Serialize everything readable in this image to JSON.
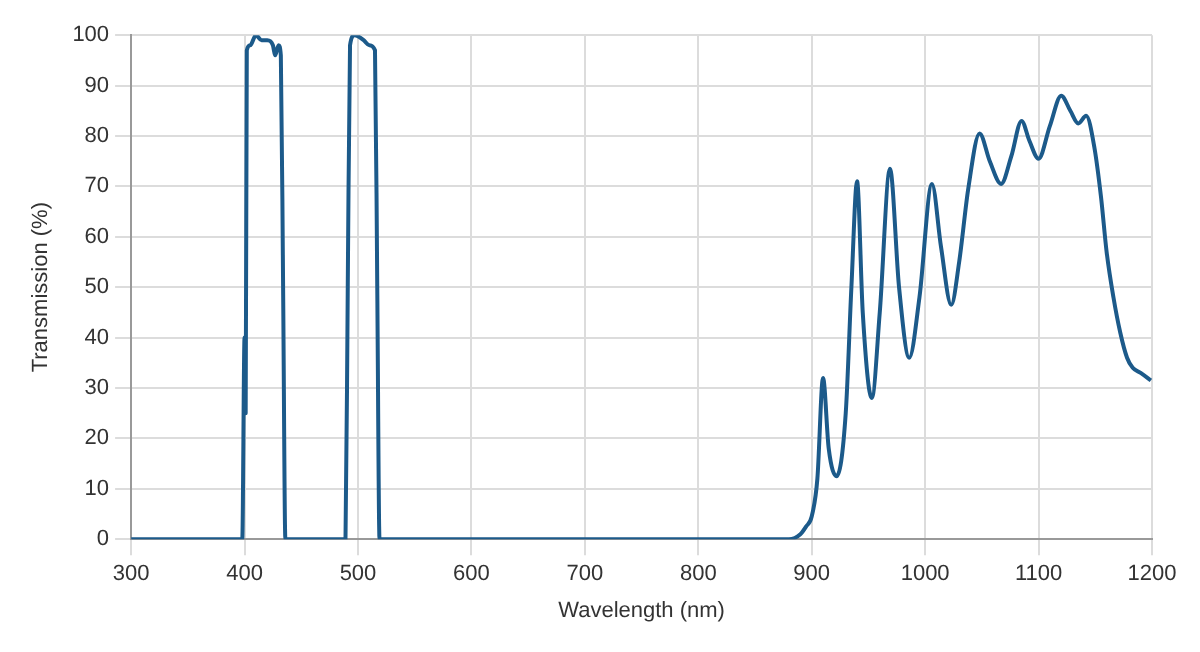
{
  "chart_data": {
    "type": "line",
    "xlabel": "Wavelength (nm)",
    "ylabel": "Transmission (%)",
    "xlim": [
      300,
      1200
    ],
    "xticks": [
      300,
      400,
      500,
      600,
      700,
      800,
      900,
      1000,
      1100,
      1200
    ],
    "ylim": [
      0,
      100
    ],
    "yticks": [
      0,
      10,
      20,
      30,
      40,
      50,
      60,
      70,
      80,
      90,
      100
    ],
    "grid": true,
    "legend": false,
    "marker": "none",
    "line_style": "solid",
    "series": [
      {
        "color": "#1c5a8a",
        "x": [
          300,
          398,
          400,
          401,
          402,
          405,
          410,
          415,
          420,
          425,
          427,
          430,
          432,
          434,
          436,
          489,
          491,
          493,
          497,
          505,
          510,
          515,
          517,
          519,
          880,
          890,
          895,
          900,
          905,
          910,
          915,
          922,
          930,
          935,
          940,
          945,
          953,
          960,
          969,
          977,
          986,
          995,
          1006,
          1014,
          1023,
          1030,
          1038,
          1048,
          1057,
          1067,
          1076,
          1085,
          1092,
          1100,
          1110,
          1120,
          1128,
          1135,
          1142,
          1149,
          1155,
          1160,
          1166,
          1172,
          1178,
          1183,
          1190,
          1199
        ],
        "values": [
          0,
          0,
          40,
          25,
          97,
          98,
          100,
          99,
          99,
          98,
          96,
          98,
          96,
          50,
          0,
          0,
          50,
          98,
          100,
          99,
          98,
          97,
          50,
          0,
          0,
          1,
          2.5,
          4.5,
          12,
          32,
          18,
          12.5,
          25,
          50,
          71,
          45,
          28,
          45,
          73.5,
          50,
          36,
          48,
          70.5,
          58,
          46.5,
          55,
          69.5,
          80.5,
          75,
          70.5,
          76,
          83,
          79,
          75.5,
          82,
          88,
          85,
          82.5,
          84,
          78,
          68,
          57,
          48,
          41,
          36,
          34,
          33,
          31.5
        ]
      }
    ]
  }
}
